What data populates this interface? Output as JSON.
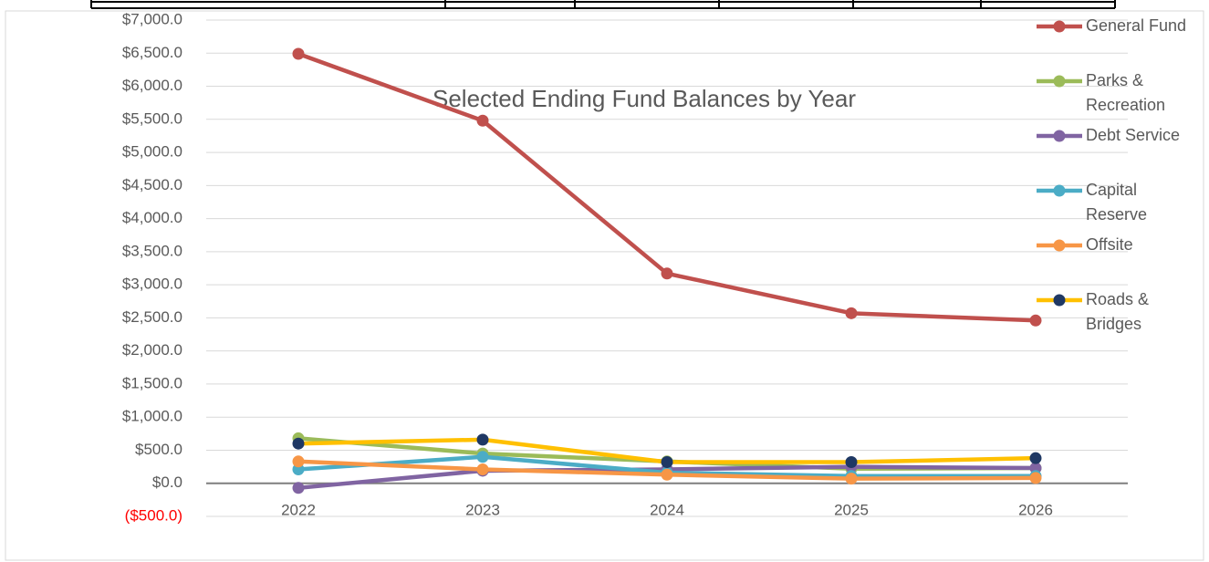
{
  "chart_data": {
    "type": "line",
    "title": "Selected Ending Fund Balances by Year",
    "categories": [
      "2022",
      "2023",
      "2024",
      "2025",
      "2026"
    ],
    "series": [
      {
        "name": "General Fund",
        "color": "#c0504d",
        "values": [
          6490,
          5480,
          3170,
          2570,
          2460
        ]
      },
      {
        "name": "Parks & Recreation",
        "color": "#9bbb59",
        "values": [
          680,
          450,
          330,
          220,
          230
        ]
      },
      {
        "name": "Debt Service",
        "color": "#8064a2",
        "values": [
          -70,
          190,
          210,
          250,
          230
        ]
      },
      {
        "name": "Capital Reserve",
        "color": "#4bacc6",
        "values": [
          210,
          400,
          160,
          110,
          110
        ]
      },
      {
        "name": "Offsite",
        "color": "#f79646",
        "values": [
          330,
          210,
          130,
          70,
          80
        ]
      },
      {
        "name": "Roads & Bridges",
        "color": "#ffc000",
        "marker_color": "#1f3864",
        "values": [
          600,
          660,
          320,
          320,
          380
        ]
      }
    ],
    "ylim": [
      -500,
      7000
    ],
    "yticks": [
      {
        "value": -500,
        "label": "($500.0)"
      },
      {
        "value": 0,
        "label": "$0.0"
      },
      {
        "value": 500,
        "label": "$500.0"
      },
      {
        "value": 1000,
        "label": "$1,000.0"
      },
      {
        "value": 1500,
        "label": "$1,500.0"
      },
      {
        "value": 2000,
        "label": "$2,000.0"
      },
      {
        "value": 2500,
        "label": "$2,500.0"
      },
      {
        "value": 3000,
        "label": "$3,000.0"
      },
      {
        "value": 3500,
        "label": "$3,500.0"
      },
      {
        "value": 4000,
        "label": "$4,000.0"
      },
      {
        "value": 4500,
        "label": "$4,500.0"
      },
      {
        "value": 5000,
        "label": "$5,000.0"
      },
      {
        "value": 5500,
        "label": "$5,500.0"
      },
      {
        "value": 6000,
        "label": "$6,000.0"
      },
      {
        "value": 6500,
        "label": "$6,500.0"
      },
      {
        "value": 7000,
        "label": "$7,000.0"
      }
    ],
    "grid": true,
    "negative_label_color": "#ff0000",
    "legend": "right"
  }
}
